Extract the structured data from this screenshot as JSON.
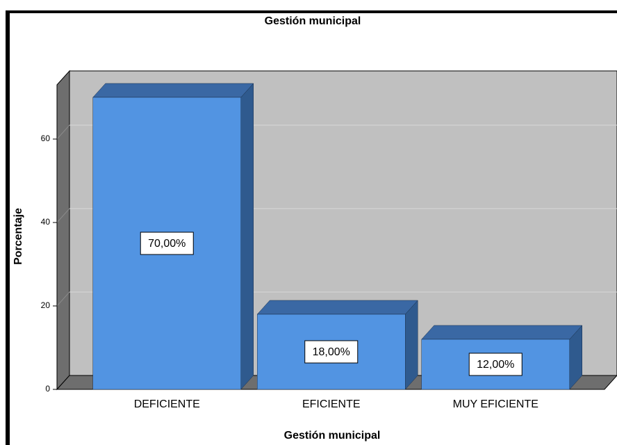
{
  "chart_data": {
    "type": "bar3d",
    "title": "Gestión municipal",
    "x_label": "Gestión municipal",
    "y_label": "Porcentaje",
    "categories": [
      "DEFICIENTE",
      "EFICIENTE",
      "MUY EFICIENTE"
    ],
    "values": [
      70,
      18,
      12
    ],
    "value_labels": [
      "70,00%",
      "18,00%",
      "12,00%"
    ],
    "color": "#5294e2",
    "ylim": [
      0,
      73
    ],
    "yticks": [
      0,
      20,
      40,
      60
    ],
    "grid": true
  }
}
